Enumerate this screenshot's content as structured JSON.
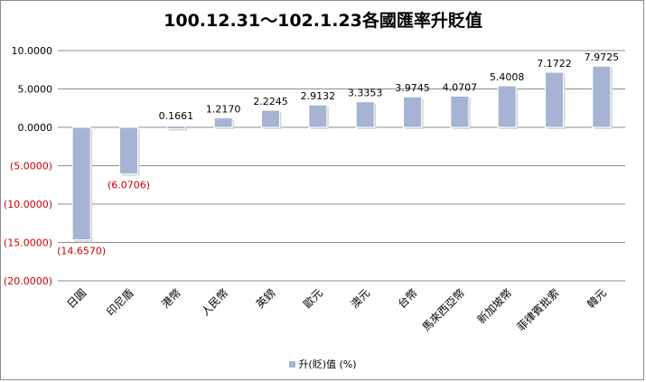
{
  "chart_data": {
    "type": "bar",
    "title": "100.12.31～102.1.23各國匯率升貶值",
    "categories": [
      "日圓",
      "印尼盾",
      "港幣",
      "人民幣",
      "英鎊",
      "歐元",
      "澳元",
      "台幣",
      "馬來西亞幣",
      "新加坡幣",
      "菲律賓批索",
      "韓元"
    ],
    "series": [
      {
        "name": "升(貶)值 (%)",
        "values": [
          -14.657,
          -6.0706,
          0.1661,
          1.217,
          2.2245,
          2.9132,
          3.3353,
          3.9745,
          4.0707,
          5.4008,
          7.1722,
          7.9725
        ],
        "data_labels": [
          "(14.6570)",
          "(6.0706)",
          "0.1661",
          "1.2170",
          "2.2245",
          "2.9132",
          "3.3353",
          "3.9745",
          "4.0707",
          "5.4008",
          "7.1722",
          "7.9725"
        ]
      }
    ],
    "y_ticks": [
      10,
      5,
      0,
      -5,
      -10,
      -15,
      -20
    ],
    "y_tick_labels": [
      "10.0000",
      "5.0000",
      "0.0000",
      "(5.0000)",
      "(10.0000)",
      "(15.0000)",
      "(20.0000)"
    ],
    "ylim": [
      -20,
      10
    ],
    "grid": true,
    "legend_position": "bottom",
    "xlabel": "",
    "ylabel": ""
  },
  "colors": {
    "bar": "#a6b3d4",
    "bar_shadow": "#d4d4d4",
    "negative_label": "#cc0000",
    "positive_label": "#000000",
    "gridline": "#8c8c8c",
    "axis": "#8c8c8c"
  }
}
